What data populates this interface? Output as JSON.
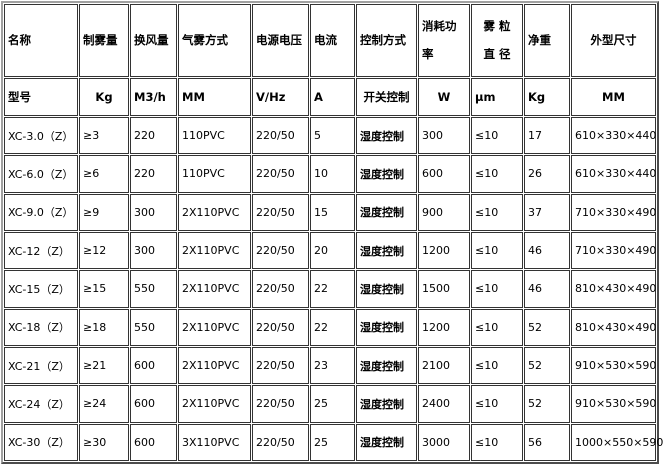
{
  "header": [
    "名称",
    "制雾量",
    "换风量",
    "气雾方式",
    "电源电压",
    "电流",
    "控制方式",
    "消耗功率",
    "雾 粒 直 径",
    "净重",
    "外型尺寸"
  ],
  "header_lines": {
    "power": [
      "消耗功",
      "率"
    ],
    "particle": [
      "雾 粒",
      "直 径"
    ]
  },
  "units": [
    "型号",
    "Kg",
    "M3/h",
    "MM",
    "V/Hz",
    "A",
    "开关控制",
    "W",
    "μm",
    "Kg",
    "MM"
  ],
  "rows": [
    [
      "XC-3.0（Z）",
      "≥3",
      "220",
      "110PVC",
      "220/50",
      "5",
      "湿度控制",
      "300",
      "≤10",
      "17",
      "610×330×440"
    ],
    [
      "XC-6.0（Z）",
      "≥6",
      "220",
      "110PVC",
      "220/50",
      "10",
      "湿度控制",
      "600",
      "≤10",
      "26",
      "610×330×440"
    ],
    [
      "XC-9.0（Z）",
      "≥9",
      "300",
      "2X110PVC",
      "220/50",
      "15",
      "湿度控制",
      "900",
      "≤10",
      "37",
      "710×330×490"
    ],
    [
      "XC-12（Z）",
      "≥12",
      "300",
      "2X110PVC",
      "220/50",
      "20",
      "湿度控制",
      "1200",
      "≤10",
      "46",
      "710×330×490"
    ],
    [
      "XC-15（Z）",
      "≥15",
      "550",
      "2X110PVC",
      "220/50",
      "22",
      "湿度控制",
      "1500",
      "≤10",
      "46",
      "810×430×490"
    ],
    [
      "XC-18（Z）",
      "≥18",
      "550",
      "2X110PVC",
      "220/50",
      "22",
      "湿度控制",
      "1200",
      "≤10",
      "52",
      "810×430×490"
    ],
    [
      "XC-21（Z）",
      "≥21",
      "600",
      "2X110PVC",
      "220/50",
      "23",
      "湿度控制",
      "2100",
      "≤10",
      "52",
      "910×530×590"
    ],
    [
      "XC-24（Z）",
      "≥24",
      "600",
      "2X110PVC",
      "220/50",
      "25",
      "湿度控制",
      "2400",
      "≤10",
      "52",
      "910×530×590"
    ],
    [
      "XC-30（Z）",
      "≥30",
      "600",
      "3X110PVC",
      "220/50",
      "25",
      "湿度控制",
      "3000",
      "≤10",
      "56",
      "1000×550×590"
    ]
  ]
}
